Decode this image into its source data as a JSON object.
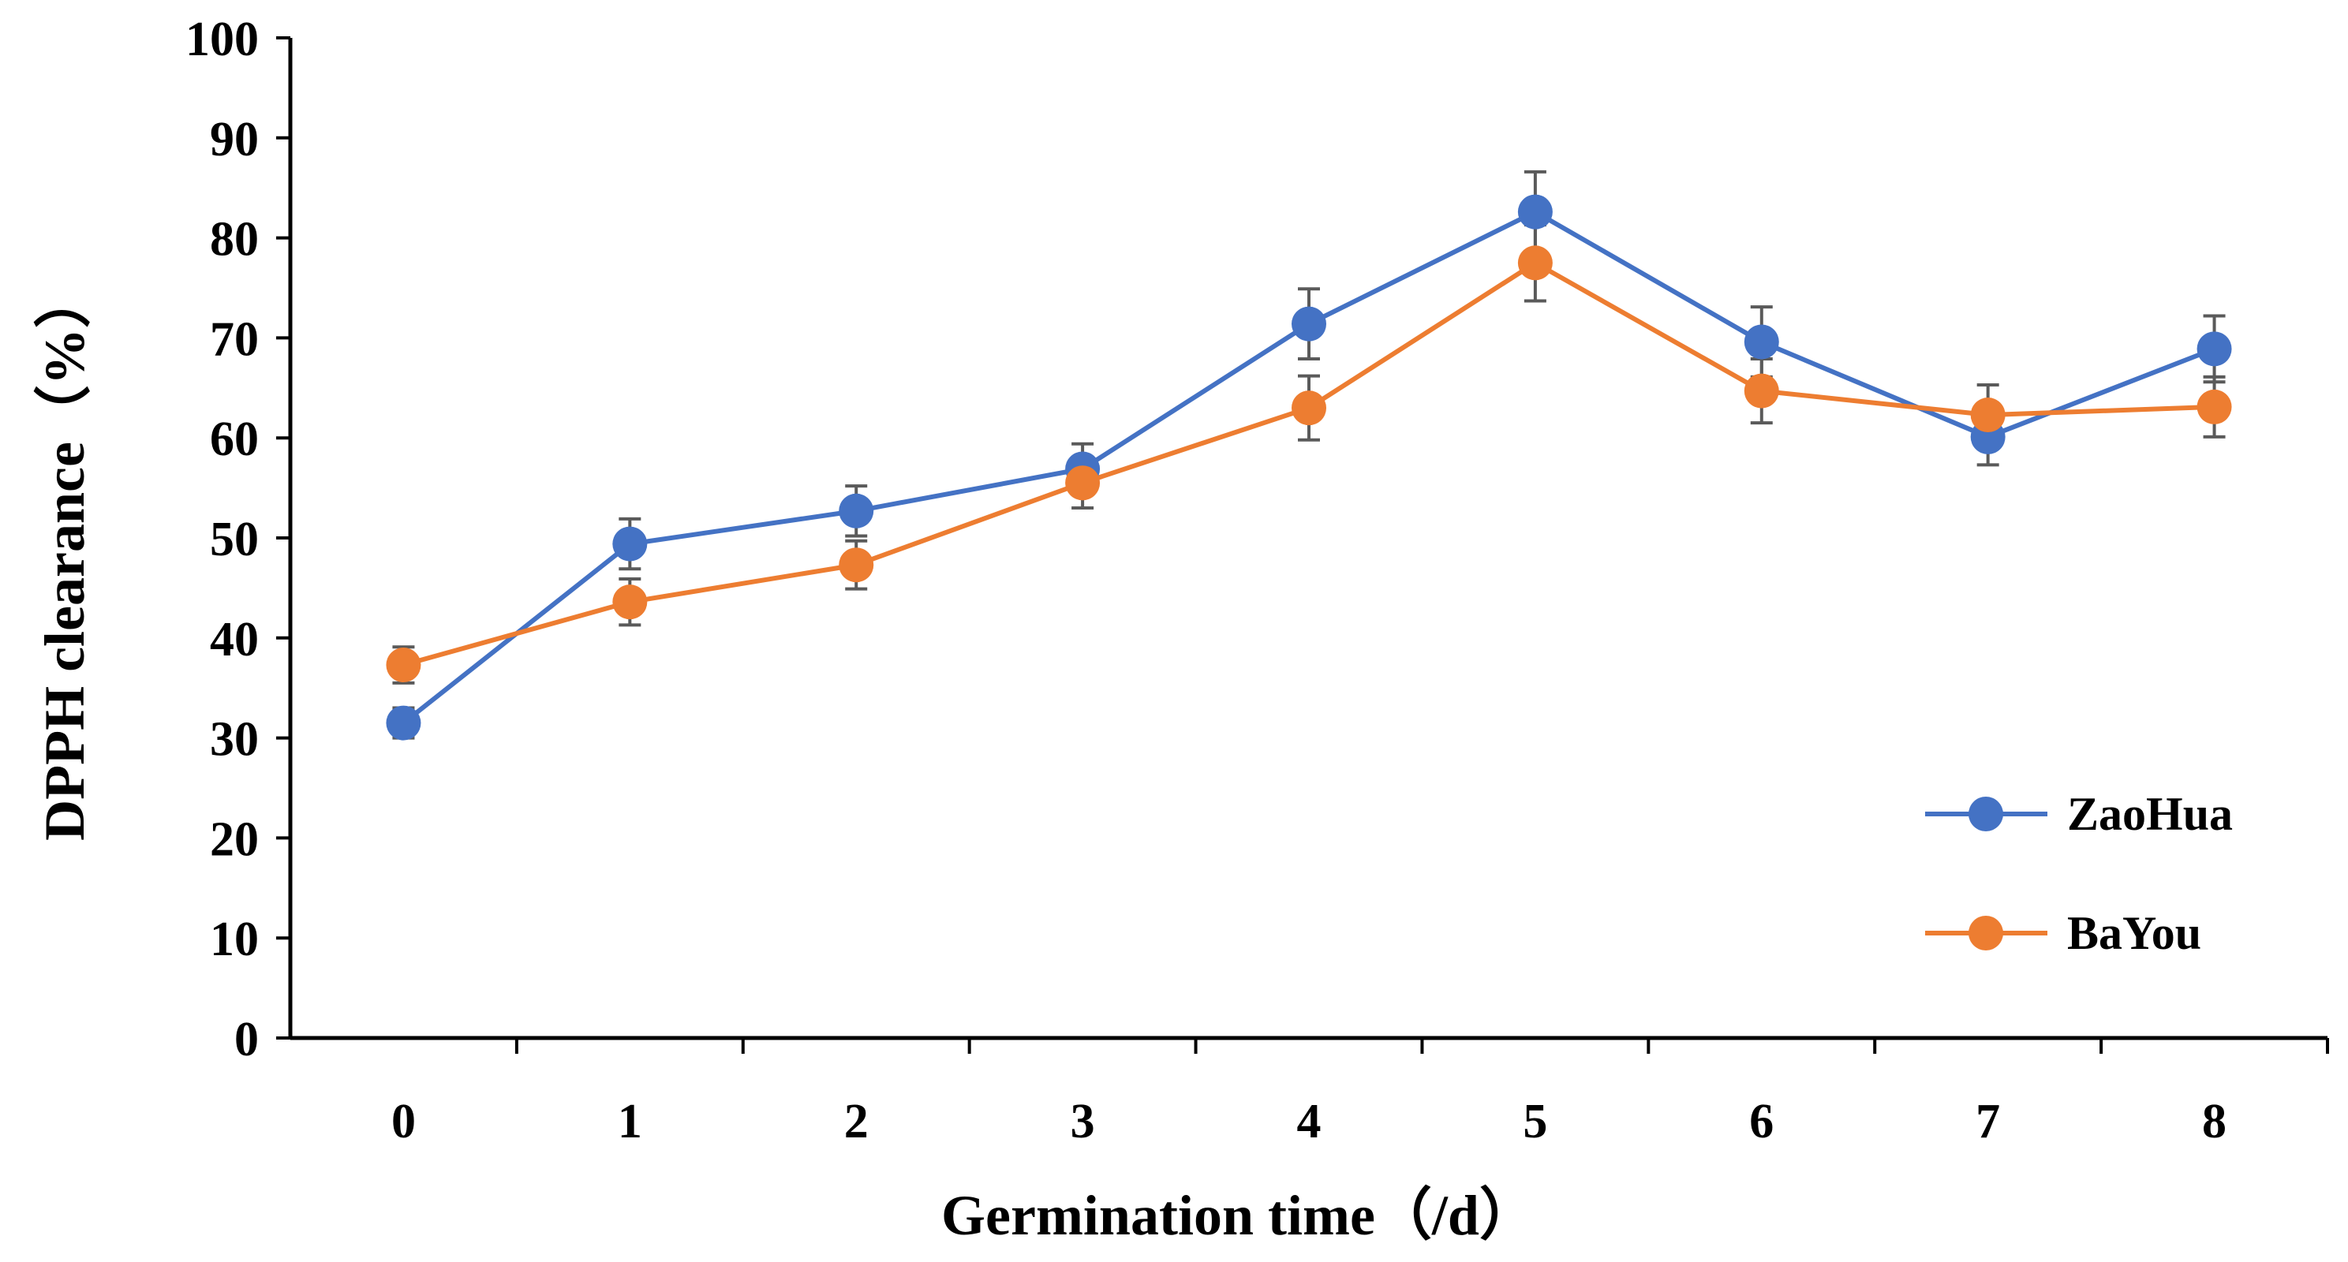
{
  "chart_data": {
    "type": "line",
    "title": "",
    "xlabel": "Germination time（/d）",
    "ylabel": "DPPH clearance（%）",
    "x": [
      0,
      1,
      2,
      3,
      4,
      5,
      6,
      7,
      8
    ],
    "x_tick_labels": [
      "0",
      "1",
      "2",
      "3",
      "4",
      "5",
      "6",
      "7",
      "8"
    ],
    "y_tick_labels": [
      "0",
      "10",
      "20",
      "30",
      "40",
      "50",
      "60",
      "70",
      "80",
      "90",
      "100"
    ],
    "ylim": [
      0,
      100
    ],
    "grid": false,
    "legend_position": "right",
    "series": [
      {
        "name": "ZaoHua",
        "color": "#4472C4",
        "values": [
          31.5,
          49.4,
          52.7,
          56.9,
          71.4,
          82.6,
          69.6,
          60.1,
          68.9
        ],
        "errors": [
          1.5,
          2.5,
          2.5,
          2.5,
          3.5,
          4.0,
          3.5,
          2.8,
          3.3
        ]
      },
      {
        "name": "BaYou",
        "color": "#ED7D31",
        "values": [
          37.3,
          43.6,
          47.3,
          55.5,
          63.0,
          77.5,
          64.7,
          62.3,
          63.1
        ],
        "errors": [
          1.8,
          2.3,
          2.4,
          2.5,
          3.2,
          3.8,
          3.2,
          3.0,
          3.0
        ]
      }
    ]
  }
}
